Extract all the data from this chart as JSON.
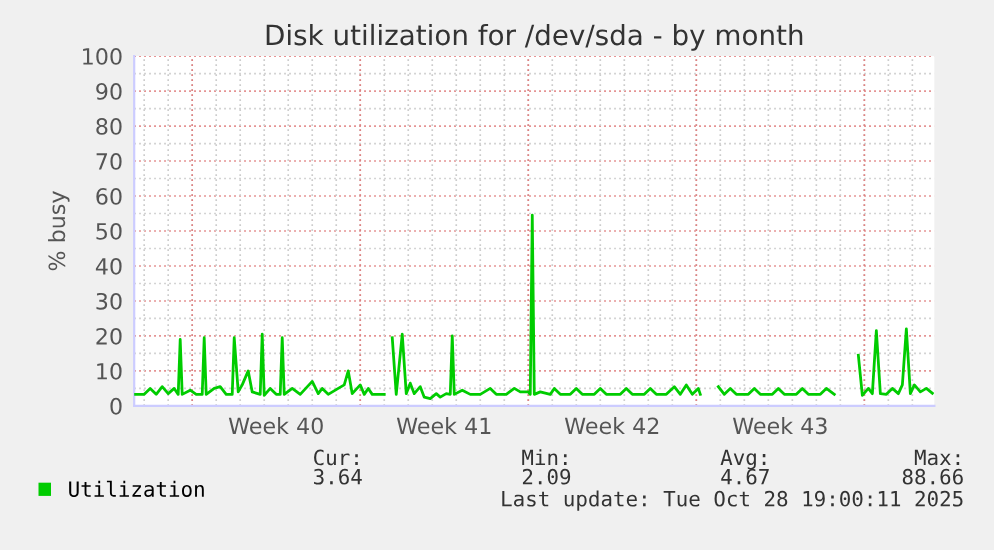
{
  "chart_data": {
    "type": "line",
    "title": "Disk utilization for /dev/sda - by month",
    "ylabel": "% busy",
    "xlim": [
      "2025-09-26T14:00",
      "2025-10-29T22:00"
    ],
    "xticks": [
      {
        "value": "2025-09-29",
        "label": null
      },
      {
        "value": "2025-10-02T12:00",
        "label": "Week 40"
      },
      {
        "value": "2025-10-06",
        "label": null
      },
      {
        "value": "2025-10-09T12:00",
        "label": "Week 41"
      },
      {
        "value": "2025-10-13",
        "label": null
      },
      {
        "value": "2025-10-16T12:00",
        "label": "Week 42"
      },
      {
        "value": "2025-10-20",
        "label": null
      },
      {
        "value": "2025-10-23T12:00",
        "label": "Week 43"
      },
      {
        "value": "2025-10-27",
        "label": null
      }
    ],
    "ylim": [
      0,
      100
    ],
    "yticks": [
      0,
      10,
      20,
      30,
      40,
      50,
      60,
      70,
      80,
      90,
      100
    ],
    "grid": true,
    "legend": "bottom left",
    "x": [
      "2025-09-26T14:00",
      "2025-09-27T00:00",
      "2025-09-27T06:00",
      "2025-09-27T12:00",
      "2025-09-27T18:00",
      "2025-09-28T00:00",
      "2025-09-28T06:00",
      "2025-09-28T10:00",
      "2025-09-28T12:00",
      "2025-09-28T14:00",
      "2025-09-28T22:00",
      "2025-09-29T04:00",
      "2025-09-29T10:00",
      "2025-09-29T12:00",
      "2025-09-29T14:00",
      "2025-09-29T22:00",
      "2025-09-30T04:00",
      "2025-09-30T10:00",
      "2025-09-30T16:00",
      "2025-09-30T18:00",
      "2025-09-30T22:00",
      "2025-10-01T02:00",
      "2025-10-01T08:00",
      "2025-10-01T12:00",
      "2025-10-01T20:00",
      "2025-10-01T22:00",
      "2025-10-02T00:00",
      "2025-10-02T06:00",
      "2025-10-02T12:00",
      "2025-10-02T16:00",
      "2025-10-02T18:00",
      "2025-10-02T20:00",
      "2025-10-03T04:00",
      "2025-10-03T12:00",
      "2025-10-04T00:00",
      "2025-10-04T06:00",
      "2025-10-04T10:00",
      "2025-10-04T16:00",
      "2025-10-05T02:00",
      "2025-10-05T08:00",
      "2025-10-05T12:00",
      "2025-10-05T16:00",
      "2025-10-06T00:00",
      "2025-10-06T04:00",
      "2025-10-06T08:00",
      "2025-10-06T12:00",
      "2025-10-07T00:00",
      "2025-10-07T04:00",
      "2025-10-07T08:00",
      "2025-10-07T12:00",
      "2025-10-07T18:00",
      "2025-10-07T22:00",
      "2025-10-08T02:00",
      "2025-10-08T06:00",
      "2025-10-08T12:00",
      "2025-10-08T16:00",
      "2025-10-08T22:00",
      "2025-10-09T04:00",
      "2025-10-09T08:00",
      "2025-10-09T14:00",
      "2025-10-09T18:00",
      "2025-10-09T20:00",
      "2025-10-09T22:00",
      "2025-10-10T06:00",
      "2025-10-10T14:00",
      "2025-10-11T00:00",
      "2025-10-11T10:00",
      "2025-10-11T16:00",
      "2025-10-12T02:00",
      "2025-10-12T10:00",
      "2025-10-12T16:00",
      "2025-10-13T00:00",
      "2025-10-13T02:00",
      "2025-10-13T04:00",
      "2025-10-13T06:00",
      "2025-10-13T12:00",
      "2025-10-13T22:00",
      "2025-10-14T02:00",
      "2025-10-14T08:00",
      "2025-10-14T18:00",
      "2025-10-15T00:00",
      "2025-10-15T06:00",
      "2025-10-15T18:00",
      "2025-10-16T00:00",
      "2025-10-16T06:00",
      "2025-10-16T20:00",
      "2025-10-17T02:00",
      "2025-10-17T08:00",
      "2025-10-17T20:00",
      "2025-10-18T02:00",
      "2025-10-18T08:00",
      "2025-10-18T18:00",
      "2025-10-19T02:00",
      "2025-10-19T08:00",
      "2025-10-19T14:00",
      "2025-10-19T20:00",
      "2025-10-20T02:00",
      "2025-10-20T04:00",
      "2025-10-20T12:00",
      "2025-10-20T22:00",
      "2025-10-21T04:00",
      "2025-10-21T10:00",
      "2025-10-21T16:00",
      "2025-10-22T04:00",
      "2025-10-22T10:00",
      "2025-10-22T16:00",
      "2025-10-23T04:00",
      "2025-10-23T10:00",
      "2025-10-23T16:00",
      "2025-10-24T04:00",
      "2025-10-24T10:00",
      "2025-10-24T16:00",
      "2025-10-25T04:00",
      "2025-10-25T10:00",
      "2025-10-25T18:00",
      "2025-10-26T06:00",
      "2025-10-26T18:00",
      "2025-10-26T22:00",
      "2025-10-27T04:00",
      "2025-10-27T08:00",
      "2025-10-27T12:00",
      "2025-10-27T16:00",
      "2025-10-27T22:00",
      "2025-10-28T04:00",
      "2025-10-28T10:00",
      "2025-10-28T14:00",
      "2025-10-28T18:00",
      "2025-10-28T22:00",
      "2025-10-29T02:00",
      "2025-10-29T08:00",
      "2025-10-29T14:00",
      "2025-10-29T20:00"
    ],
    "series": [
      {
        "name": "Utilization",
        "color": "#00cc00",
        "values": [
          3.3,
          3.3,
          5,
          3.3,
          5.5,
          3.5,
          5,
          3.3,
          19,
          3.3,
          4.5,
          3.3,
          3.3,
          19.5,
          3.3,
          5,
          5.5,
          3.3,
          3.3,
          19.5,
          4,
          6,
          10,
          4,
          3.3,
          20.5,
          3,
          5,
          3.3,
          3.3,
          19.5,
          3.3,
          5,
          3.3,
          7,
          3.5,
          5,
          3.3,
          5,
          6,
          10,
          3.5,
          6,
          3.3,
          5,
          3.3,
          3.3,
          null,
          19.5,
          3.3,
          20.5,
          3.5,
          6.5,
          3.5,
          5.5,
          2.5,
          2.1,
          3.5,
          2.5,
          3.5,
          3.3,
          20,
          3.3,
          4.5,
          3.3,
          3.3,
          5,
          3.3,
          3.3,
          5,
          4,
          4,
          3.3,
          54.5,
          3.3,
          4,
          3.3,
          5,
          3.3,
          3.3,
          5,
          3.3,
          3.3,
          5,
          3.3,
          3.3,
          5,
          3.3,
          3.3,
          5,
          3.3,
          3.3,
          5.5,
          3.3,
          6,
          3.3,
          5,
          3.3,
          null,
          5.5,
          3.3,
          5,
          3.3,
          3.3,
          5,
          3.3,
          3.3,
          5,
          3.3,
          3.3,
          5,
          3.3,
          3.3,
          5,
          3.3,
          null,
          14.5,
          3,
          5,
          3.5,
          21.5,
          3.5,
          3.3,
          5,
          3.5,
          6,
          22,
          3.5,
          6,
          4,
          5,
          3.6
        ]
      }
    ],
    "annotations": [
      "Cur:",
      "Min:",
      "Avg:",
      "Max:",
      "3.64",
      "2.09",
      "4.67",
      "88.66",
      "Last update: Tue Oct 28 19:00:11 2025"
    ]
  }
}
